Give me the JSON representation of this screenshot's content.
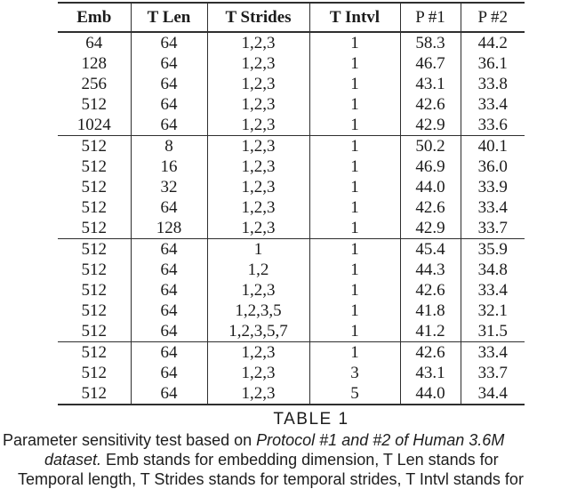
{
  "table": {
    "columns": [
      "Emb",
      "T Len",
      "T Strides",
      "T Intvl",
      "P #1",
      "P #2"
    ],
    "groups": [
      {
        "rows": [
          [
            "64",
            "64",
            "1,2,3",
            "1",
            "58.3",
            "44.2"
          ],
          [
            "128",
            "64",
            "1,2,3",
            "1",
            "46.7",
            "36.1"
          ],
          [
            "256",
            "64",
            "1,2,3",
            "1",
            "43.1",
            "33.8"
          ],
          [
            "512",
            "64",
            "1,2,3",
            "1",
            "42.6",
            "33.4"
          ],
          [
            "1024",
            "64",
            "1,2,3",
            "1",
            "42.9",
            "33.6"
          ]
        ]
      },
      {
        "rows": [
          [
            "512",
            "8",
            "1,2,3",
            "1",
            "50.2",
            "40.1"
          ],
          [
            "512",
            "16",
            "1,2,3",
            "1",
            "46.9",
            "36.0"
          ],
          [
            "512",
            "32",
            "1,2,3",
            "1",
            "44.0",
            "33.9"
          ],
          [
            "512",
            "64",
            "1,2,3",
            "1",
            "42.6",
            "33.4"
          ],
          [
            "512",
            "128",
            "1,2,3",
            "1",
            "42.9",
            "33.7"
          ]
        ]
      },
      {
        "rows": [
          [
            "512",
            "64",
            "1",
            "1",
            "45.4",
            "35.9"
          ],
          [
            "512",
            "64",
            "1,2",
            "1",
            "44.3",
            "34.8"
          ],
          [
            "512",
            "64",
            "1,2,3",
            "1",
            "42.6",
            "33.4"
          ],
          [
            "512",
            "64",
            "1,2,3,5",
            "1",
            "41.8",
            "32.1"
          ],
          [
            "512",
            "64",
            "1,2,3,5,7",
            "1",
            "41.2",
            "31.5"
          ]
        ]
      },
      {
        "rows": [
          [
            "512",
            "64",
            "1,2,3",
            "1",
            "42.6",
            "33.4"
          ],
          [
            "512",
            "64",
            "1,2,3",
            "3",
            "43.1",
            "33.7"
          ],
          [
            "512",
            "64",
            "1,2,3",
            "5",
            "44.0",
            "34.4"
          ]
        ]
      }
    ]
  },
  "caption": {
    "table_label": "TABLE 1",
    "lines": [
      {
        "segments": [
          {
            "text": "Parameter sensitivity test based on ",
            "italic": false
          },
          {
            "text": "Protocol #1 and #2 of Human 3.6M",
            "italic": true
          }
        ]
      },
      {
        "segments": [
          {
            "text": "dataset.",
            "italic": true
          },
          {
            "text": " Emb stands for embedding dimension, T Len stands for",
            "italic": false
          }
        ]
      },
      {
        "segments": [
          {
            "text": "Temporal length, T Strides stands for temporal strides, T Intvl stands for",
            "italic": false
          }
        ]
      }
    ]
  }
}
